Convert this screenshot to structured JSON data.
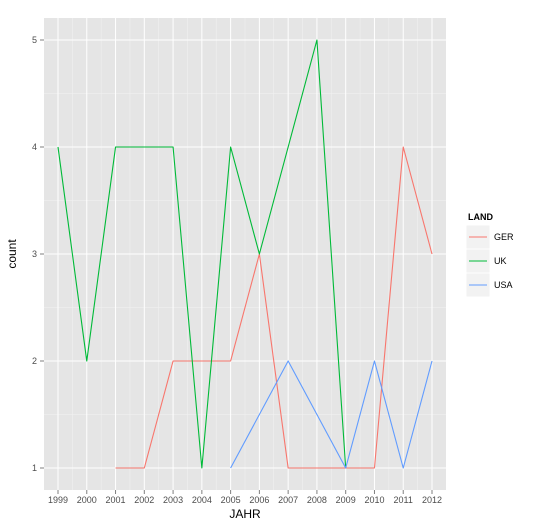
{
  "chart_data": {
    "type": "line",
    "xlabel": "JAHR",
    "ylabel": "count",
    "x": [
      "1999",
      "2000",
      "2001",
      "2002",
      "2003",
      "2004",
      "2005",
      "2006",
      "2007",
      "2008",
      "2009",
      "2010",
      "2011",
      "2012"
    ],
    "xlim": [
      1999,
      2012
    ],
    "ylim": [
      1,
      5
    ],
    "yticks": [
      "1",
      "2",
      "3",
      "4",
      "5"
    ],
    "grid": true,
    "legend": {
      "title": "LAND",
      "placement": "right"
    },
    "series": [
      {
        "name": "GER",
        "color": "#F8766D",
        "points": [
          [
            2001,
            1
          ],
          [
            2002,
            1
          ],
          [
            2003,
            2
          ],
          [
            2004,
            2
          ],
          [
            2005,
            2
          ],
          [
            2006,
            3
          ],
          [
            2007,
            1
          ],
          [
            2008,
            1
          ],
          [
            2009,
            1
          ],
          [
            2010,
            1
          ],
          [
            2011,
            4
          ],
          [
            2012,
            3
          ]
        ]
      },
      {
        "name": "UK",
        "color": "#00BA38",
        "points": [
          [
            1999,
            4
          ],
          [
            2000,
            2
          ],
          [
            2001,
            4
          ],
          [
            2002,
            4
          ],
          [
            2003,
            4
          ],
          [
            2004,
            1
          ],
          [
            2005,
            4
          ],
          [
            2006,
            3
          ],
          [
            2007,
            4
          ],
          [
            2008,
            5
          ],
          [
            2009,
            1
          ]
        ]
      },
      {
        "name": "USA",
        "color": "#619CFF",
        "points": [
          [
            2005,
            1
          ],
          [
            2007,
            2
          ],
          [
            2009,
            1
          ],
          [
            2010,
            2
          ],
          [
            2011,
            1
          ],
          [
            2012,
            2
          ]
        ]
      }
    ]
  }
}
